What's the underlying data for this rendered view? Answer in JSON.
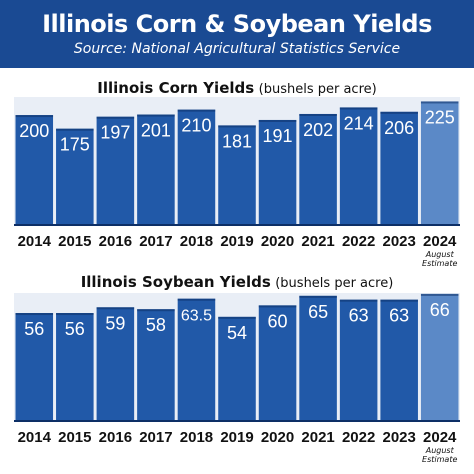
{
  "header": {
    "title": "Illinois Corn & Soybean Yields",
    "source": "Source: National Agricultural Statistics Service"
  },
  "colors": {
    "header_bg": "#1a4a93",
    "bar": "#2159a8",
    "bar_estimate": "#5b89c7",
    "bar_text": "#ffffff",
    "label_text": "#111111"
  },
  "chart_data": [
    {
      "type": "bar",
      "title": "Illinois Corn Yields",
      "unit": "(bushels per acre)",
      "categories": [
        "2014",
        "2015",
        "2016",
        "2017",
        "2018",
        "2019",
        "2020",
        "2021",
        "2022",
        "2023",
        "2024"
      ],
      "values": [
        200,
        175,
        197,
        201,
        210,
        181,
        191,
        202,
        214,
        206,
        225
      ],
      "value_labels": [
        "200",
        "175",
        "197",
        "201",
        "210",
        "181",
        "191",
        "202",
        "214",
        "206",
        "225"
      ],
      "estimate_index": 10,
      "estimate_note": "August Estimate",
      "grid": false,
      "legend": "none"
    },
    {
      "type": "bar",
      "title": "Illinois Soybean Yields",
      "unit": "(bushels per acre)",
      "categories": [
        "2014",
        "2015",
        "2016",
        "2017",
        "2018",
        "2019",
        "2020",
        "2021",
        "2022",
        "2023",
        "2024"
      ],
      "values": [
        56,
        56,
        59,
        58,
        63.5,
        54,
        60,
        65,
        63,
        63,
        66
      ],
      "value_labels": [
        "56",
        "56",
        "59",
        "58",
        "63.5",
        "54",
        "60",
        "65",
        "63",
        "63",
        "66"
      ],
      "estimate_index": 10,
      "estimate_note": "August Estimate",
      "grid": false,
      "legend": "none"
    }
  ]
}
